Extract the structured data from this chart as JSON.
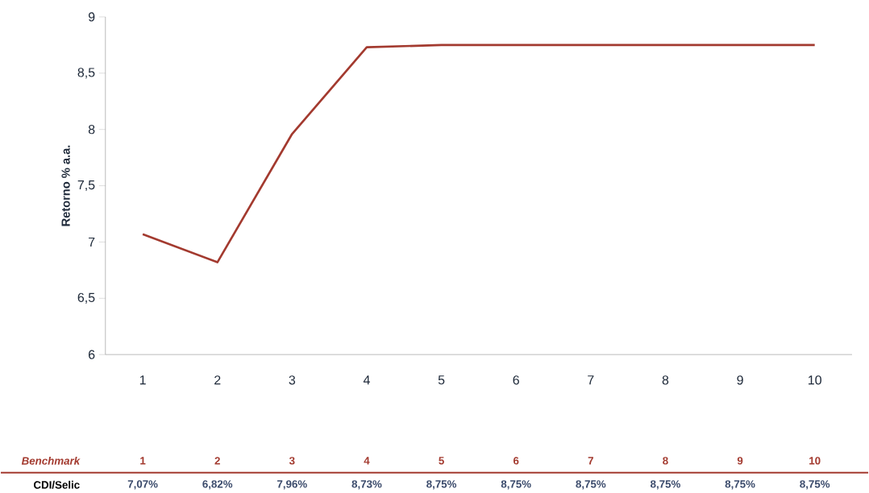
{
  "chart_data": {
    "type": "line",
    "ylabel": "Retorno % a.a.",
    "categories": [
      "1",
      "2",
      "3",
      "4",
      "5",
      "6",
      "7",
      "8",
      "9",
      "10"
    ],
    "series": [
      {
        "name": "CDI/Selic",
        "color": "#a33a2f",
        "values": [
          7.07,
          6.82,
          7.96,
          8.73,
          8.75,
          8.75,
          8.75,
          8.75,
          8.75,
          8.75
        ],
        "value_labels": [
          "7,07%",
          "6,82%",
          "7,96%",
          "8,73%",
          "8,75%",
          "8,75%",
          "8,75%",
          "8,75%",
          "8,75%",
          "8,75%"
        ]
      }
    ],
    "ylim": [
      6,
      9
    ],
    "yticks": [
      6,
      {
        "value": 6.5,
        "label": "6,5"
      },
      7,
      {
        "value": 7.5,
        "label": "7,5"
      },
      8,
      {
        "value": 8.5,
        "label": "8,5"
      },
      9
    ],
    "grid": false,
    "legend": false,
    "marker": "none",
    "line_style": "solid",
    "annotations": [
      "Benchmark"
    ]
  }
}
